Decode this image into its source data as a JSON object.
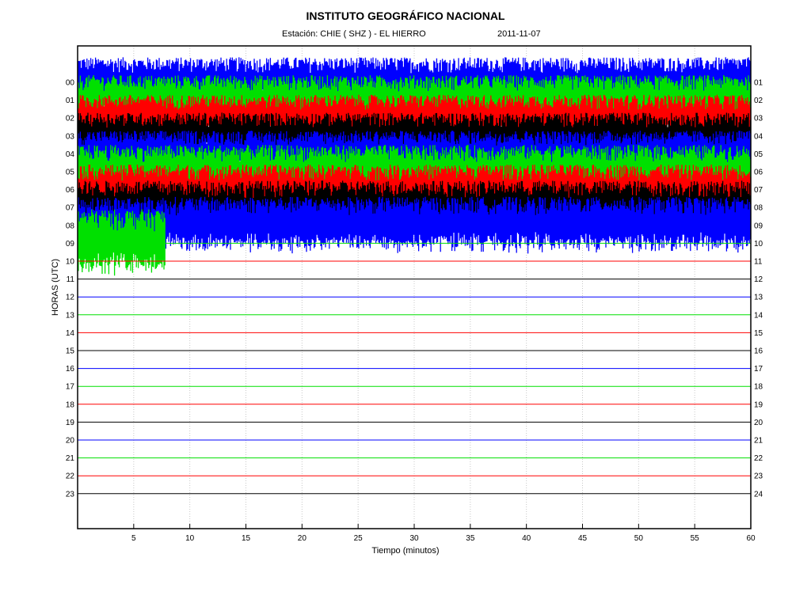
{
  "header": {
    "title": "INSTITUTO GEOGRÁFICO NACIONAL",
    "station": "Estación:  CHIE ( SHZ ) - EL HIERRO",
    "date": "2011-11-07"
  },
  "chart_data": {
    "type": "line",
    "title": "INSTITUTO GEOGRÁFICO NACIONAL",
    "subtitle": "Estación:  CHIE ( SHZ ) - EL HIERRO   2011-11-07",
    "xlabel": "Tiempo (minutos)",
    "ylabel": "HORAS (UTC)",
    "xlim": [
      0,
      60
    ],
    "x_ticks": [
      5,
      10,
      15,
      20,
      25,
      30,
      35,
      40,
      45,
      50,
      55,
      60
    ],
    "x_tick_labels": [
      "5",
      "10",
      "15",
      "20",
      "25",
      "30",
      "35",
      "40",
      "45",
      "50",
      "55",
      "60"
    ],
    "left_hour_labels": [
      "00",
      "01",
      "02",
      "03",
      "04",
      "05",
      "06",
      "07",
      "08",
      "09",
      "10",
      "11",
      "12",
      "13",
      "14",
      "15",
      "16",
      "17",
      "18",
      "19",
      "20",
      "21",
      "22",
      "23"
    ],
    "right_hour_labels": [
      "01",
      "02",
      "03",
      "04",
      "05",
      "06",
      "07",
      "08",
      "09",
      "10",
      "11",
      "12",
      "13",
      "14",
      "15",
      "16",
      "17",
      "18",
      "19",
      "20",
      "21",
      "22",
      "23",
      "24"
    ],
    "trace_colors": [
      "#0000ff",
      "#00e000",
      "#ff0000",
      "#000000"
    ],
    "traces": [
      {
        "hour": 0,
        "color": "#0000ff",
        "amplitude": 1.4,
        "x_end": 60
      },
      {
        "hour": 1,
        "color": "#00e000",
        "amplitude": 1.4,
        "x_end": 60
      },
      {
        "hour": 2,
        "color": "#ff0000",
        "amplitude": 1.3,
        "x_end": 60
      },
      {
        "hour": 3,
        "color": "#000000",
        "amplitude": 1.3,
        "x_end": 60
      },
      {
        "hour": 4,
        "color": "#0000ff",
        "amplitude": 1.3,
        "x_end": 60
      },
      {
        "hour": 5,
        "color": "#00e000",
        "amplitude": 1.5,
        "x_end": 60
      },
      {
        "hour": 6,
        "color": "#ff0000",
        "amplitude": 1.4,
        "x_end": 60
      },
      {
        "hour": 7,
        "color": "#000000",
        "amplitude": 1.5,
        "x_end": 60
      },
      {
        "hour": 8,
        "color": "#0000ff",
        "amplitude": 1.6,
        "x_end": 60
      },
      {
        "hour": 9,
        "color": "#00e000",
        "amplitude": 1.9,
        "x_end": 7.8
      },
      {
        "hour": 10,
        "color": "#ff0000",
        "amplitude": 0,
        "x_end": 60
      },
      {
        "hour": 11,
        "color": "#000000",
        "amplitude": 0,
        "x_end": 60
      },
      {
        "hour": 12,
        "color": "#0000ff",
        "amplitude": 0,
        "x_end": 60
      },
      {
        "hour": 13,
        "color": "#00e000",
        "amplitude": 0,
        "x_end": 60
      },
      {
        "hour": 14,
        "color": "#ff0000",
        "amplitude": 0,
        "x_end": 60
      },
      {
        "hour": 15,
        "color": "#000000",
        "amplitude": 0,
        "x_end": 60
      },
      {
        "hour": 16,
        "color": "#0000ff",
        "amplitude": 0,
        "x_end": 60
      },
      {
        "hour": 17,
        "color": "#00e000",
        "amplitude": 0,
        "x_end": 60
      },
      {
        "hour": 18,
        "color": "#ff0000",
        "amplitude": 0,
        "x_end": 60
      },
      {
        "hour": 19,
        "color": "#000000",
        "amplitude": 0,
        "x_end": 60
      },
      {
        "hour": 20,
        "color": "#0000ff",
        "amplitude": 0,
        "x_end": 60
      },
      {
        "hour": 21,
        "color": "#00e000",
        "amplitude": 0,
        "x_end": 60
      },
      {
        "hour": 22,
        "color": "#ff0000",
        "amplitude": 0,
        "x_end": 60
      },
      {
        "hour": 23,
        "color": "#000000",
        "amplitude": 0,
        "x_end": 60
      }
    ],
    "grid": "vertical-dotted"
  }
}
